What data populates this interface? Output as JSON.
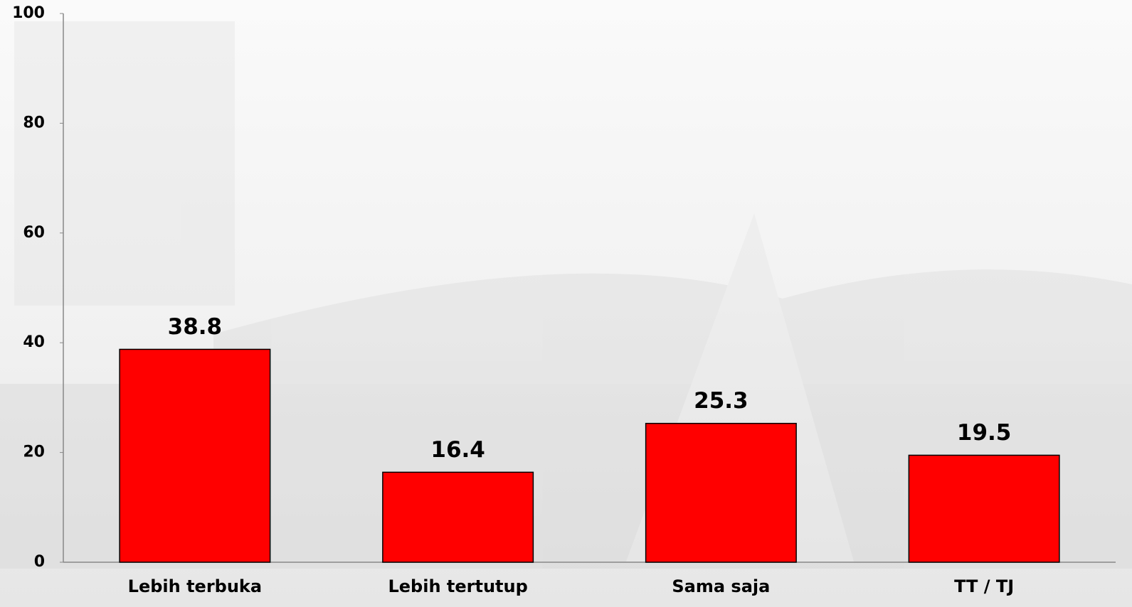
{
  "chart_data": {
    "type": "bar",
    "categories": [
      "Lebih terbuka",
      "Lebih tertutup",
      "Sama saja",
      "TT / TJ"
    ],
    "values": [
      38.8,
      16.4,
      25.3,
      19.5
    ],
    "color": "#ff0000",
    "ylim": [
      0,
      100
    ],
    "yticks": [
      0,
      20,
      40,
      60,
      80,
      100
    ],
    "grid": false
  }
}
